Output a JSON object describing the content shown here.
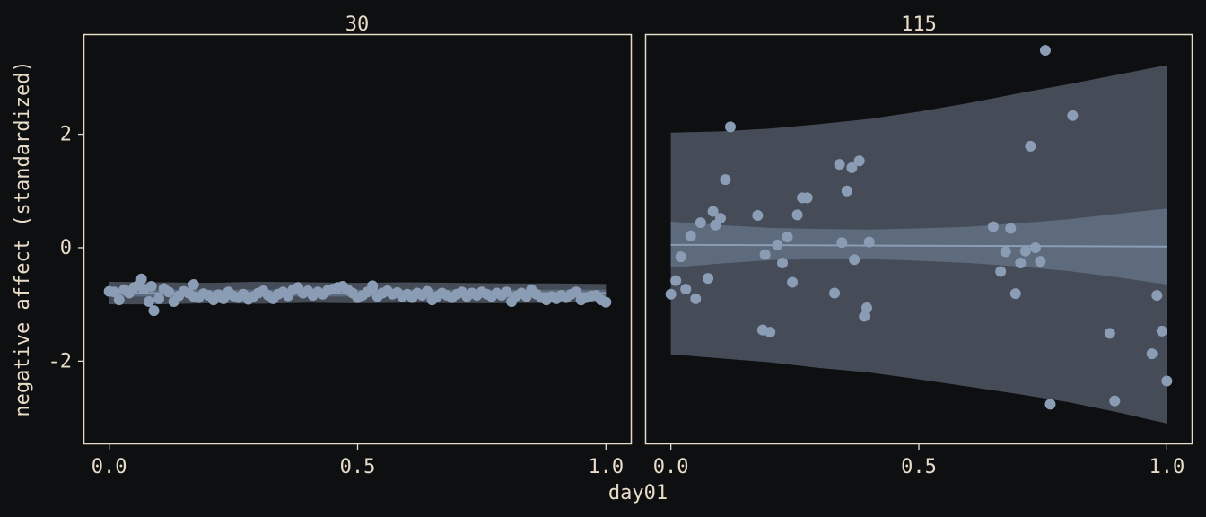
{
  "chart_data": {
    "type": "scatter",
    "xlabel": "day01",
    "ylabel": "negative affect (standardized)",
    "ylim": [
      -3.45,
      3.75
    ],
    "xlim": [
      -0.05,
      1.05
    ],
    "y_ticks": [
      -2,
      0,
      2
    ],
    "y_tick_labels": [
      "-2",
      "0",
      "2"
    ],
    "x_ticks": [
      0.0,
      0.5,
      1.0
    ],
    "x_tick_labels": [
      "0.0",
      "0.5",
      "1.0"
    ],
    "colors": {
      "background": "#0e0f11",
      "points": "#8a9db5",
      "fit_line": "#8a9db5",
      "inner_band": "#5d6b7c",
      "outer_band": "#454c57",
      "text": "#e8dcc8"
    },
    "panels": [
      {
        "strip_label": "30",
        "fit": {
          "x": [
            0,
            1
          ],
          "y": [
            -0.8,
            -0.8
          ]
        },
        "inner_band": {
          "x": [
            0,
            1
          ],
          "lower": [
            -0.86,
            -0.86
          ],
          "upper": [
            -0.74,
            -0.74
          ]
        },
        "outer_band": {
          "x": [
            0,
            0.1,
            0.2,
            0.3,
            0.4,
            0.5,
            0.6,
            0.7,
            0.8,
            0.9,
            1.0
          ],
          "lower": [
            -1.0,
            -1.0,
            -0.98,
            -0.99,
            -0.97,
            -0.98,
            -0.97,
            -0.98,
            -0.98,
            -0.97,
            -0.96
          ],
          "upper": [
            -0.6,
            -0.61,
            -0.62,
            -0.6,
            -0.61,
            -0.62,
            -0.61,
            -0.62,
            -0.63,
            -0.63,
            -0.64
          ]
        },
        "points": {
          "x": [
            0.0,
            0.01,
            0.02,
            0.03,
            0.04,
            0.05,
            0.06,
            0.07,
            0.08,
            0.09,
            0.1,
            0.11,
            0.12,
            0.13,
            0.14,
            0.15,
            0.16,
            0.17,
            0.18,
            0.19,
            0.2,
            0.21,
            0.22,
            0.23,
            0.24,
            0.25,
            0.26,
            0.27,
            0.28,
            0.29,
            0.3,
            0.31,
            0.32,
            0.33,
            0.34,
            0.35,
            0.36,
            0.37,
            0.38,
            0.39,
            0.4,
            0.41,
            0.42,
            0.43,
            0.44,
            0.45,
            0.46,
            0.47,
            0.48,
            0.49,
            0.5,
            0.51,
            0.52,
            0.53,
            0.54,
            0.55,
            0.56,
            0.57,
            0.58,
            0.59,
            0.6,
            0.61,
            0.62,
            0.63,
            0.64,
            0.65,
            0.66,
            0.67,
            0.68,
            0.69,
            0.7,
            0.71,
            0.72,
            0.73,
            0.74,
            0.75,
            0.76,
            0.77,
            0.78,
            0.79,
            0.8,
            0.81,
            0.82,
            0.83,
            0.84,
            0.85,
            0.86,
            0.87,
            0.88,
            0.89,
            0.9,
            0.91,
            0.92,
            0.93,
            0.94,
            0.95,
            0.96,
            0.97,
            0.98,
            0.99,
            1.0,
            0.065,
            0.085,
            0.17,
            0.53
          ],
          "y": [
            -0.77,
            -0.78,
            -0.92,
            -0.74,
            -0.8,
            -0.7,
            -0.66,
            -0.73,
            -0.95,
            -1.11,
            -0.9,
            -0.72,
            -0.78,
            -0.95,
            -0.85,
            -0.77,
            -0.8,
            -0.86,
            -0.88,
            -0.81,
            -0.84,
            -0.92,
            -0.83,
            -0.9,
            -0.78,
            -0.85,
            -0.88,
            -0.82,
            -0.91,
            -0.86,
            -0.8,
            -0.76,
            -0.84,
            -0.9,
            -0.82,
            -0.78,
            -0.85,
            -0.74,
            -0.7,
            -0.8,
            -0.76,
            -0.84,
            -0.78,
            -0.82,
            -0.75,
            -0.73,
            -0.7,
            -0.68,
            -0.74,
            -0.8,
            -0.88,
            -0.84,
            -0.78,
            -0.72,
            -0.86,
            -0.8,
            -0.76,
            -0.82,
            -0.79,
            -0.86,
            -0.82,
            -0.88,
            -0.8,
            -0.84,
            -0.77,
            -0.92,
            -0.86,
            -0.8,
            -0.84,
            -0.88,
            -0.82,
            -0.78,
            -0.86,
            -0.8,
            -0.84,
            -0.78,
            -0.82,
            -0.86,
            -0.8,
            -0.84,
            -0.78,
            -0.95,
            -0.85,
            -0.8,
            -0.86,
            -0.74,
            -0.82,
            -0.88,
            -0.92,
            -0.86,
            -0.9,
            -0.84,
            -0.88,
            -0.82,
            -0.78,
            -0.92,
            -0.88,
            -0.85,
            -0.84,
            -0.92,
            -0.96,
            -0.55,
            -0.68,
            -0.65,
            -0.67
          ]
        }
      },
      {
        "strip_label": "115",
        "fit": {
          "x": [
            0,
            1
          ],
          "y": [
            0.05,
            0.02
          ]
        },
        "inner_band": {
          "x": [
            0,
            0.1,
            0.2,
            0.3,
            0.4,
            0.5,
            0.6,
            0.7,
            0.8,
            0.9,
            1.0
          ],
          "lower": [
            -0.35,
            -0.28,
            -0.22,
            -0.2,
            -0.2,
            -0.23,
            -0.27,
            -0.33,
            -0.41,
            -0.52,
            -0.65
          ],
          "upper": [
            0.46,
            0.4,
            0.35,
            0.33,
            0.32,
            0.34,
            0.37,
            0.43,
            0.5,
            0.6,
            0.69
          ]
        },
        "outer_band": {
          "x": [
            0,
            0.1,
            0.2,
            0.3,
            0.4,
            0.5,
            0.6,
            0.7,
            0.8,
            0.9,
            1.0
          ],
          "lower": [
            -1.88,
            -1.95,
            -2.02,
            -2.12,
            -2.2,
            -2.32,
            -2.45,
            -2.58,
            -2.72,
            -2.9,
            -3.1
          ],
          "upper": [
            2.03,
            2.05,
            2.1,
            2.18,
            2.27,
            2.4,
            2.55,
            2.72,
            2.88,
            3.05,
            3.22
          ]
        },
        "points": {
          "x": [
            0.0,
            0.01,
            0.02,
            0.03,
            0.04,
            0.05,
            0.06,
            0.075,
            0.085,
            0.09,
            0.1,
            0.11,
            0.12,
            0.175,
            0.185,
            0.19,
            0.2,
            0.215,
            0.225,
            0.235,
            0.245,
            0.255,
            0.265,
            0.275,
            0.33,
            0.34,
            0.345,
            0.355,
            0.365,
            0.37,
            0.38,
            0.39,
            0.395,
            0.4,
            0.65,
            0.665,
            0.675,
            0.685,
            0.695,
            0.705,
            0.715,
            0.725,
            0.735,
            0.745,
            0.755,
            0.765,
            0.81,
            0.885,
            0.895,
            0.97,
            0.98,
            0.99,
            1.0
          ],
          "y": [
            -0.82,
            -0.58,
            -0.16,
            -0.73,
            0.21,
            -0.9,
            0.44,
            -0.54,
            0.64,
            0.4,
            0.52,
            1.2,
            2.13,
            0.57,
            -1.45,
            -0.12,
            -1.49,
            0.05,
            -0.27,
            0.19,
            -0.61,
            0.58,
            0.88,
            0.88,
            -0.8,
            1.47,
            0.09,
            1.0,
            1.41,
            -0.21,
            1.53,
            -1.21,
            -1.06,
            0.1,
            0.37,
            -0.42,
            -0.07,
            0.34,
            -0.81,
            -0.27,
            -0.06,
            1.79,
            0.0,
            -0.24,
            3.48,
            -2.76,
            2.33,
            -1.51,
            -2.7,
            -1.87,
            -0.84,
            -1.47,
            -2.35
          ]
        }
      }
    ]
  }
}
